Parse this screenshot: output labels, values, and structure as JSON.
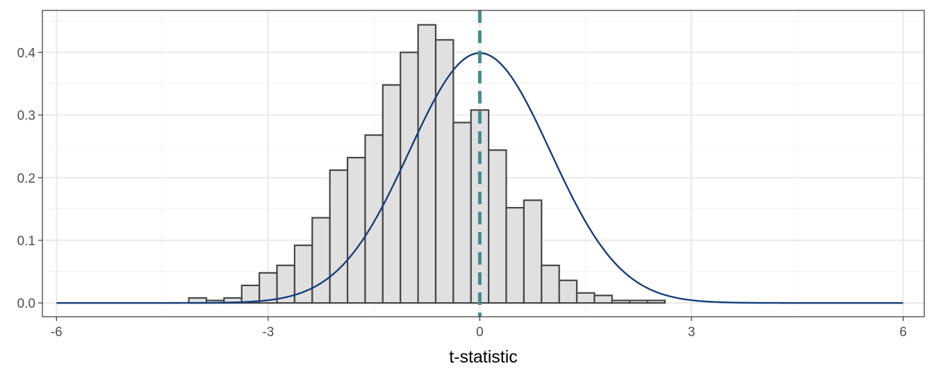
{
  "chart_data": {
    "type": "bar",
    "title": "",
    "xlabel": "t-statistic",
    "ylabel": "",
    "xlim": [
      -6.2,
      6.3
    ],
    "ylim": [
      -0.022,
      0.467
    ],
    "grid": true,
    "x_ticks": [
      {
        "value": -6,
        "label": "-6"
      },
      {
        "value": -3,
        "label": "-3"
      },
      {
        "value": 0,
        "label": "0"
      },
      {
        "value": 3,
        "label": "3"
      },
      {
        "value": 6,
        "label": "6"
      }
    ],
    "x_minor_ticks": [
      -4.5,
      -1.5,
      1.5,
      4.5
    ],
    "y_ticks": [
      {
        "value": 0.0,
        "label": "0.0"
      },
      {
        "value": 0.1,
        "label": "0.1"
      },
      {
        "value": 0.2,
        "label": "0.2"
      },
      {
        "value": 0.3,
        "label": "0.3"
      },
      {
        "value": 0.4,
        "label": "0.4"
      }
    ],
    "y_minor_ticks": [
      0.05,
      0.15,
      0.25,
      0.35,
      0.45
    ],
    "histogram": {
      "bin_width": 0.25,
      "bins": [
        {
          "x0": -4.125,
          "value": 0.008
        },
        {
          "x0": -3.875,
          "value": 0.004
        },
        {
          "x0": -3.625,
          "value": 0.008
        },
        {
          "x0": -3.375,
          "value": 0.028
        },
        {
          "x0": -3.125,
          "value": 0.048
        },
        {
          "x0": -2.875,
          "value": 0.06
        },
        {
          "x0": -2.625,
          "value": 0.092
        },
        {
          "x0": -2.375,
          "value": 0.136
        },
        {
          "x0": -2.125,
          "value": 0.212
        },
        {
          "x0": -1.875,
          "value": 0.232
        },
        {
          "x0": -1.625,
          "value": 0.268
        },
        {
          "x0": -1.375,
          "value": 0.348
        },
        {
          "x0": -1.125,
          "value": 0.4
        },
        {
          "x0": -0.875,
          "value": 0.444
        },
        {
          "x0": -0.625,
          "value": 0.42
        },
        {
          "x0": -0.375,
          "value": 0.288
        },
        {
          "x0": -0.125,
          "value": 0.308
        },
        {
          "x0": 0.125,
          "value": 0.244
        },
        {
          "x0": 0.375,
          "value": 0.152
        },
        {
          "x0": 0.625,
          "value": 0.164
        },
        {
          "x0": 0.875,
          "value": 0.06
        },
        {
          "x0": 1.125,
          "value": 0.036
        },
        {
          "x0": 1.375,
          "value": 0.016
        },
        {
          "x0": 1.625,
          "value": 0.012
        },
        {
          "x0": 1.875,
          "value": 0.004
        },
        {
          "x0": 2.125,
          "value": 0.004
        },
        {
          "x0": 2.375,
          "value": 0.004
        }
      ]
    },
    "density_curve": {
      "function": "standard normal density",
      "x_range": [
        -6,
        6
      ]
    },
    "reference_line": {
      "x": 0,
      "style": "dashed"
    },
    "colors": {
      "bar_fill": "#e0e0e0",
      "bar_stroke": "#454545",
      "curve": "#163d7a",
      "reference_line": "#4a8b8c",
      "panel_border": "#333333",
      "grid_major": "#ebebeb",
      "grid_minor": "#f3f3f3",
      "axis_text": "#4d4d4d",
      "title_text": "#000000"
    }
  }
}
